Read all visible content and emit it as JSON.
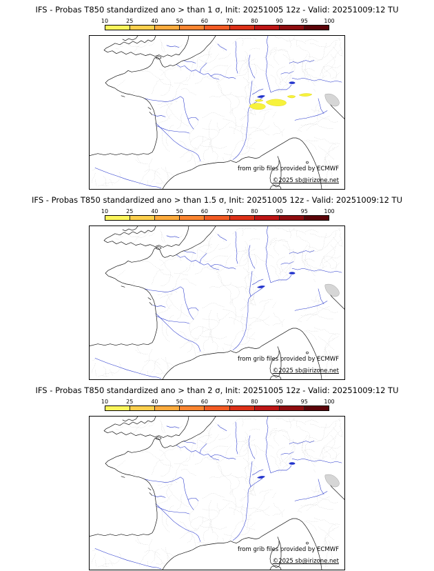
{
  "panels": [
    {
      "title": "IFS - Probas T850  standardized ano > than 1 σ, Init: 20251005 12z - Valid: 20251009:12 TU",
      "credit_provider": "from grib files provided by ECMWF",
      "credit_copyright": "©2025 sb@irizone.net"
    },
    {
      "title": "IFS - Probas T850  standardized ano > than 1.5 σ, Init: 20251005 12z - Valid: 20251009:12 TU",
      "credit_provider": "from grib files provided by ECMWF",
      "credit_copyright": "©2025 sb@irizone.net"
    },
    {
      "title": "IFS - Probas T850  standardized ano > than 2 σ, Init: 20251005 12z - Valid: 20251009:12 TU",
      "credit_provider": "from grib files provided by ECMWF",
      "credit_copyright": "©2025 sb@irizone.net"
    }
  ],
  "colorbar": {
    "ticks": [
      "10",
      "25",
      "40",
      "50",
      "60",
      "70",
      "80",
      "90",
      "95",
      "100"
    ],
    "segment_colors": [
      "#fbf55c",
      "#fccf4d",
      "#fcab3d",
      "#fa8531",
      "#f25b24",
      "#dc3118",
      "#bd1616",
      "#8f0d10",
      "#5c0309"
    ]
  },
  "map_colors": {
    "coastline": "#111111",
    "rivers": "#2233cc",
    "admin_boundaries": "#c8c8c8",
    "anomaly_shading": "#f7f23c"
  }
}
